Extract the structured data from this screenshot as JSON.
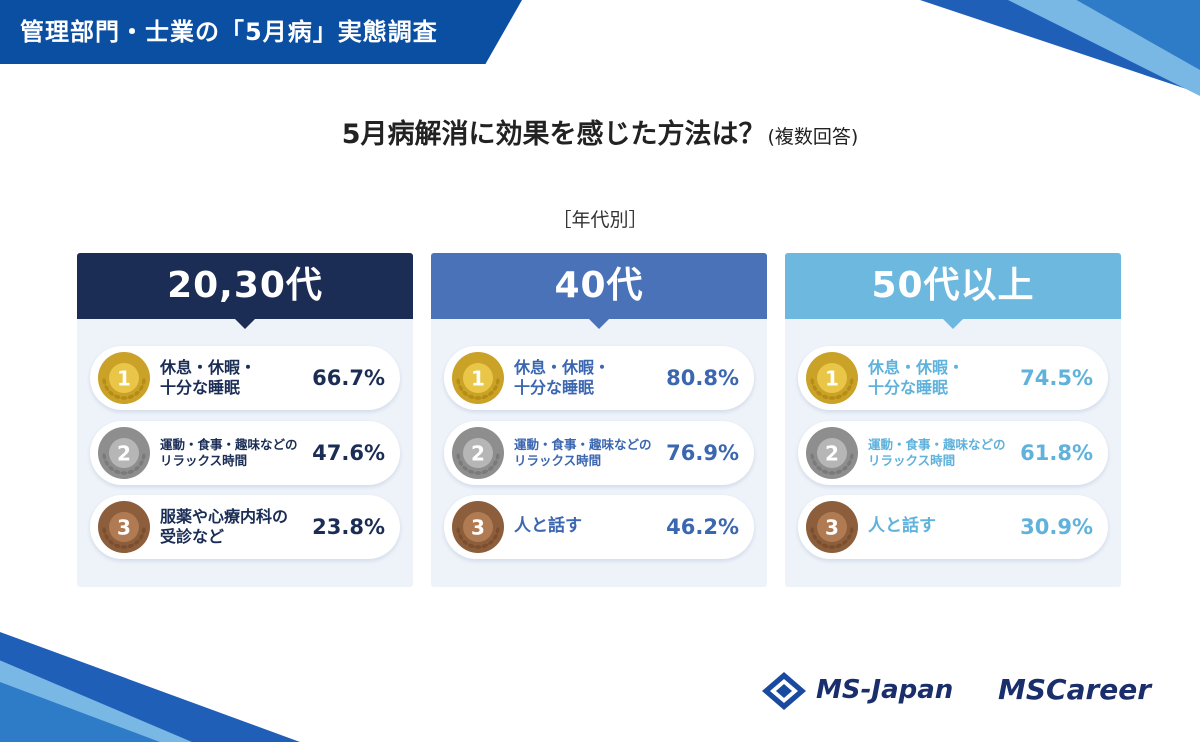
{
  "banner": {
    "title": "管理部門・士業の「5月病」実態調査"
  },
  "heading": {
    "main": "5月病解消に効果を感じた方法は？",
    "sub": "(複数回答)"
  },
  "section_label": "［年代別］",
  "colors": {
    "banner": "#0b4fa3",
    "group1": "#1b2d55",
    "group2": "#4a72b8",
    "group3": "#6cb8df",
    "card_bg": "#eef3fa"
  },
  "groups": [
    {
      "title": "20,30代",
      "items": [
        {
          "rank": "1",
          "label": "休息・休暇・\n十分な睡眠",
          "value": "66.7%"
        },
        {
          "rank": "2",
          "label": "運動・食事・趣味などの\nリラックス時間",
          "value": "47.6%"
        },
        {
          "rank": "3",
          "label": "服薬や心療内科の\n受診など",
          "value": "23.8%"
        }
      ]
    },
    {
      "title": "40代",
      "items": [
        {
          "rank": "1",
          "label": "休息・休暇・\n十分な睡眠",
          "value": "80.8%"
        },
        {
          "rank": "2",
          "label": "運動・食事・趣味などの\nリラックス時間",
          "value": "76.9%"
        },
        {
          "rank": "3",
          "label": "人と話す",
          "value": "46.2%"
        }
      ]
    },
    {
      "title": "50代以上",
      "items": [
        {
          "rank": "1",
          "label": "休息・休暇・\n十分な睡眠",
          "value": "74.5%"
        },
        {
          "rank": "2",
          "label": "運動・食事・趣味などの\nリラックス時間",
          "value": "61.8%"
        },
        {
          "rank": "3",
          "label": "人と話す",
          "value": "30.9%"
        }
      ]
    }
  ],
  "logos": {
    "company": "MS-Japan",
    "career": "MSCareer"
  }
}
